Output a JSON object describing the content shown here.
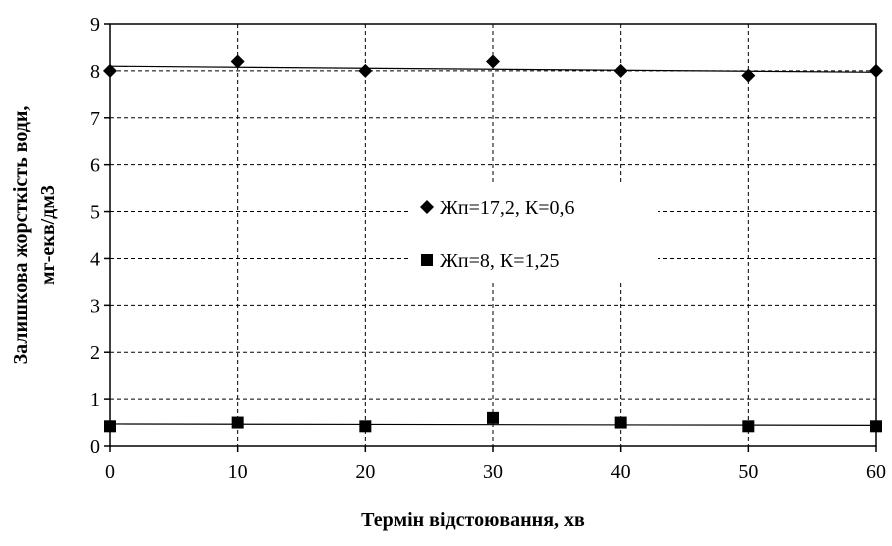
{
  "chart_data": {
    "type": "line",
    "x": [
      0,
      10,
      20,
      30,
      40,
      50,
      60
    ],
    "xlabel": "Термін відстоювання, хв",
    "ylabel_line1": "Залишкова жорсткість води,",
    "ylabel_line2": "мг-екв/дм3",
    "xlim": [
      0,
      60
    ],
    "ylim": [
      0,
      9
    ],
    "xticks": [
      "0",
      "10",
      "20",
      "30",
      "40",
      "50",
      "60"
    ],
    "yticks": [
      "0",
      "1",
      "2",
      "3",
      "4",
      "5",
      "6",
      "7",
      "8",
      "9"
    ],
    "grid": true,
    "legend_position": "center",
    "series": [
      {
        "name": "Жп=17,2, К=0,6",
        "marker": "diamond",
        "color": "#000000",
        "values": [
          8.0,
          8.2,
          8.0,
          8.2,
          8.0,
          7.9,
          8.0
        ],
        "trend": [
          8.1,
          7.97
        ]
      },
      {
        "name": "Жп=8, К=1,25",
        "marker": "square",
        "color": "#000000",
        "values": [
          0.42,
          0.5,
          0.42,
          0.6,
          0.5,
          0.42,
          0.42
        ],
        "trend": [
          0.47,
          0.44
        ]
      }
    ]
  }
}
